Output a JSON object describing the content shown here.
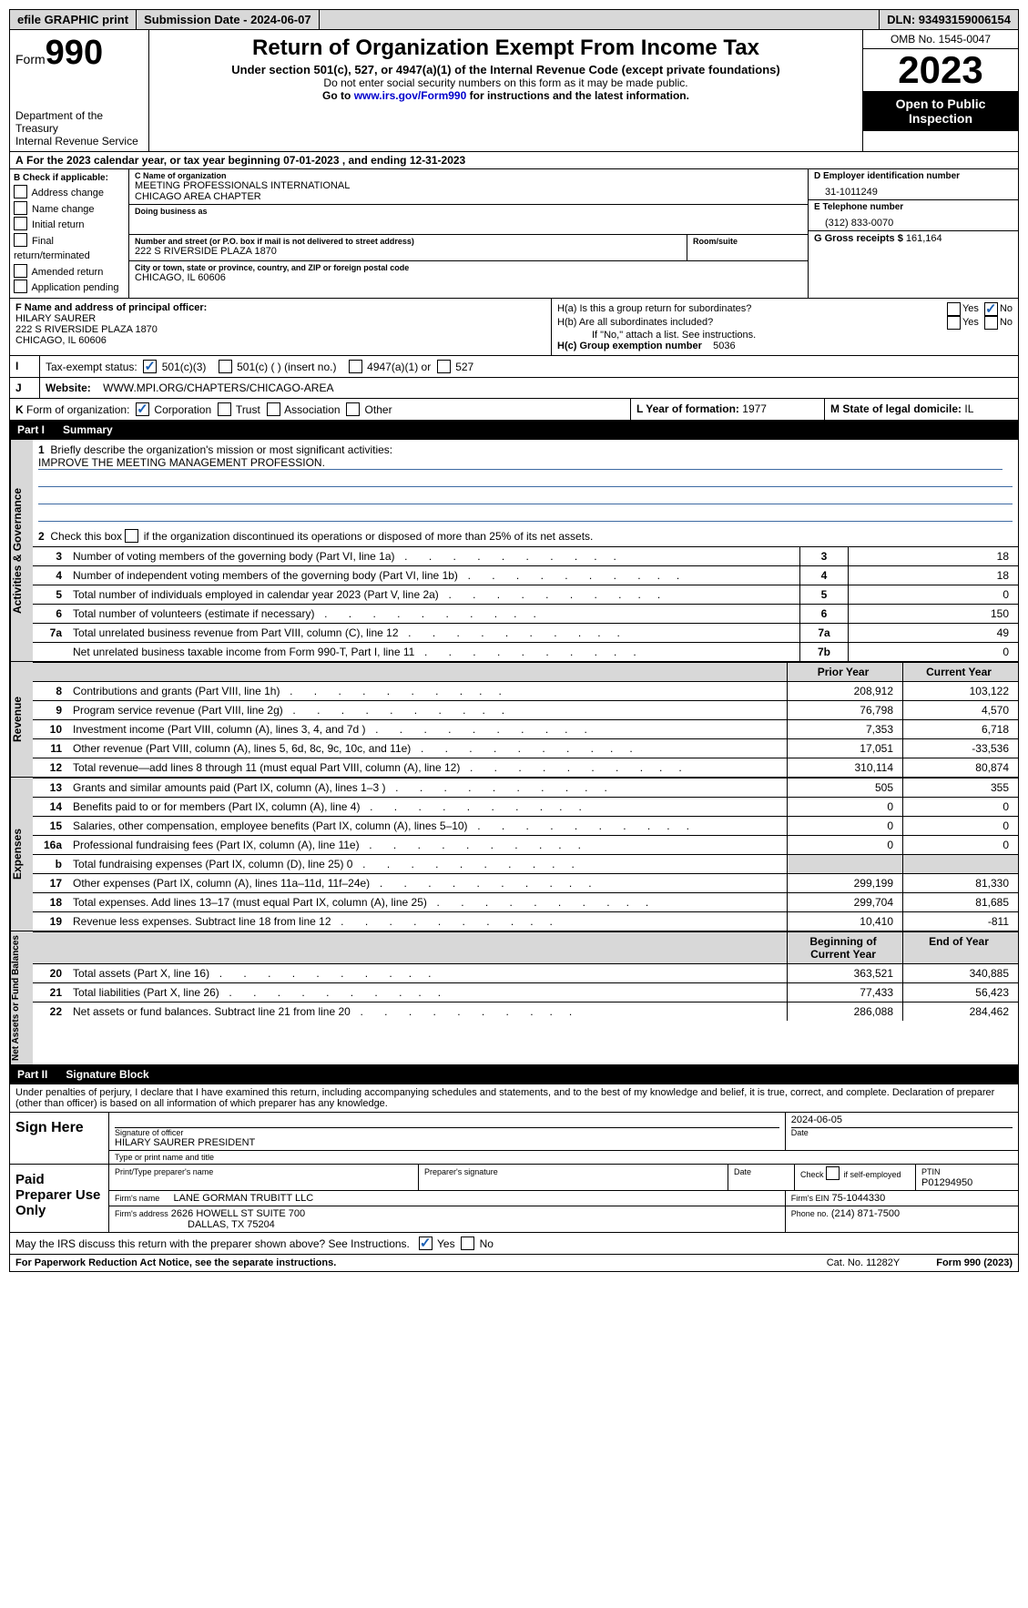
{
  "colors": {
    "bg": "#ffffff",
    "text": "#000000",
    "topbar_bg": "#d8d8d8",
    "grey_bg": "#d8d8d8",
    "black_bg": "#000000",
    "link": "#0000cc",
    "check_color": "#1a5fb4",
    "underline": "#3d6aa3"
  },
  "topbar": {
    "efile": "efile GRAPHIC print",
    "submission": "Submission Date - 2024-06-07",
    "dln": "DLN: 93493159006154"
  },
  "header": {
    "form_word": "Form",
    "form_num": "990",
    "dept1": "Department of the Treasury",
    "dept2": "Internal Revenue Service",
    "title": "Return of Organization Exempt From Income Tax",
    "sub": "Under section 501(c), 527, or 4947(a)(1) of the Internal Revenue Code (except private foundations)",
    "note1": "Do not enter social security numbers on this form as it may be made public.",
    "note2_pre": "Go to ",
    "note2_link": "www.irs.gov/Form990",
    "note2_post": " for instructions and the latest information.",
    "omb": "OMB No. 1545-0047",
    "year": "2023",
    "openpub": "Open to Public Inspection"
  },
  "A": {
    "text": "For the 2023 calendar year, or tax year beginning 07-01-2023   , and ending 12-31-2023"
  },
  "B": {
    "title": "B Check if applicable:",
    "opts": [
      {
        "label": "Address change",
        "checked": false
      },
      {
        "label": "Name change",
        "checked": false
      },
      {
        "label": "Initial return",
        "checked": false
      },
      {
        "label": "Final return/terminated",
        "checked": false
      },
      {
        "label": "Amended return",
        "checked": false
      },
      {
        "label": "Application pending",
        "checked": false
      }
    ]
  },
  "C": {
    "name_lbl": "C Name of organization",
    "name1": "MEETING PROFESSIONALS INTERNATIONAL",
    "name2": "CHICAGO AREA CHAPTER",
    "dba_lbl": "Doing business as",
    "dba": "",
    "addr_lbl": "Number and street (or P.O. box if mail is not delivered to street address)",
    "addr": "222 S RIVERSIDE PLAZA 1870",
    "room_lbl": "Room/suite",
    "city_lbl": "City or town, state or province, country, and ZIP or foreign postal code",
    "city": "CHICAGO, IL  60606"
  },
  "D": {
    "lbl": "D Employer identification number",
    "val": "31-1011249"
  },
  "E": {
    "lbl": "E Telephone number",
    "val": "(312) 833-0070"
  },
  "G": {
    "lbl": "G Gross receipts $",
    "val": "161,164"
  },
  "F": {
    "lbl": "F  Name and address of principal officer:",
    "name": "HILARY SAURER",
    "addr": "222 S RIVERSIDE PLAZA 1870",
    "city": "CHICAGO, IL  60606"
  },
  "H": {
    "a": "H(a)  Is this a group return for subordinates?",
    "a_yes": false,
    "a_no": true,
    "b": "H(b)  Are all subordinates included?",
    "b_yes": false,
    "b_no": false,
    "b_note": "If \"No,\" attach a list. See instructions.",
    "c_lbl": "H(c)  Group exemption number",
    "c_val": "5036"
  },
  "I": {
    "lbl": "Tax-exempt status:",
    "opt1": "501(c)(3)",
    "opt1_checked": true,
    "opt2": "501(c) (  ) (insert no.)",
    "opt3": "4947(a)(1) or",
    "opt4": "527"
  },
  "J": {
    "lbl": "Website:",
    "val": "WWW.MPI.ORG/CHAPTERS/CHICAGO-AREA"
  },
  "K": {
    "lbl": "Form of organization:",
    "opts": [
      {
        "label": "Corporation",
        "checked": true
      },
      {
        "label": "Trust",
        "checked": false
      },
      {
        "label": "Association",
        "checked": false
      },
      {
        "label": "Other",
        "checked": false
      }
    ]
  },
  "L": {
    "lbl": "L Year of formation:",
    "val": "1977"
  },
  "M": {
    "lbl": "M State of legal domicile:",
    "val": "IL"
  },
  "part1": {
    "hdr": "Part I",
    "title": "Summary",
    "line1_lbl": "Briefly describe the organization's mission or most significant activities:",
    "line1_val": "IMPROVE THE MEETING MANAGEMENT PROFESSION.",
    "line2": "Check this box       if the organization discontinued its operations or disposed of more than 25% of its net assets.",
    "side1": "Activities & Governance",
    "side2": "Revenue",
    "side3": "Expenses",
    "side4": "Net Assets or Fund Balances",
    "col_prior": "Prior Year",
    "col_current": "Current Year",
    "col_beg": "Beginning of Current Year",
    "col_end": "End of Year",
    "gov_rows": [
      {
        "n": "3",
        "desc": "Number of voting members of the governing body (Part VI, line 1a)",
        "box": "3",
        "val": "18"
      },
      {
        "n": "4",
        "desc": "Number of independent voting members of the governing body (Part VI, line 1b)",
        "box": "4",
        "val": "18"
      },
      {
        "n": "5",
        "desc": "Total number of individuals employed in calendar year 2023 (Part V, line 2a)",
        "box": "5",
        "val": "0"
      },
      {
        "n": "6",
        "desc": "Total number of volunteers (estimate if necessary)",
        "box": "6",
        "val": "150"
      },
      {
        "n": "7a",
        "desc": "Total unrelated business revenue from Part VIII, column (C), line 12",
        "box": "7a",
        "val": "49"
      },
      {
        "n": "",
        "desc": "Net unrelated business taxable income from Form 990-T, Part I, line 11",
        "box": "7b",
        "val": "0"
      }
    ],
    "rev_rows": [
      {
        "n": "8",
        "desc": "Contributions and grants (Part VIII, line 1h)",
        "py": "208,912",
        "cy": "103,122"
      },
      {
        "n": "9",
        "desc": "Program service revenue (Part VIII, line 2g)",
        "py": "76,798",
        "cy": "4,570"
      },
      {
        "n": "10",
        "desc": "Investment income (Part VIII, column (A), lines 3, 4, and 7d )",
        "py": "7,353",
        "cy": "6,718"
      },
      {
        "n": "11",
        "desc": "Other revenue (Part VIII, column (A), lines 5, 6d, 8c, 9c, 10c, and 11e)",
        "py": "17,051",
        "cy": "-33,536"
      },
      {
        "n": "12",
        "desc": "Total revenue—add lines 8 through 11 (must equal Part VIII, column (A), line 12)",
        "py": "310,114",
        "cy": "80,874"
      }
    ],
    "exp_rows": [
      {
        "n": "13",
        "desc": "Grants and similar amounts paid (Part IX, column (A), lines 1–3 )",
        "py": "505",
        "cy": "355"
      },
      {
        "n": "14",
        "desc": "Benefits paid to or for members (Part IX, column (A), line 4)",
        "py": "0",
        "cy": "0"
      },
      {
        "n": "15",
        "desc": "Salaries, other compensation, employee benefits (Part IX, column (A), lines 5–10)",
        "py": "0",
        "cy": "0"
      },
      {
        "n": "16a",
        "desc": "Professional fundraising fees (Part IX, column (A), line 11e)",
        "py": "0",
        "cy": "0"
      },
      {
        "n": "b",
        "desc": "Total fundraising expenses (Part IX, column (D), line 25) 0",
        "py": "GREY",
        "cy": "GREY"
      },
      {
        "n": "17",
        "desc": "Other expenses (Part IX, column (A), lines 11a–11d, 11f–24e)",
        "py": "299,199",
        "cy": "81,330"
      },
      {
        "n": "18",
        "desc": "Total expenses. Add lines 13–17 (must equal Part IX, column (A), line 25)",
        "py": "299,704",
        "cy": "81,685"
      },
      {
        "n": "19",
        "desc": "Revenue less expenses. Subtract line 18 from line 12",
        "py": "10,410",
        "cy": "-811"
      }
    ],
    "na_rows": [
      {
        "n": "20",
        "desc": "Total assets (Part X, line 16)",
        "py": "363,521",
        "cy": "340,885"
      },
      {
        "n": "21",
        "desc": "Total liabilities (Part X, line 26)",
        "py": "77,433",
        "cy": "56,423"
      },
      {
        "n": "22",
        "desc": "Net assets or fund balances. Subtract line 21 from line 20",
        "py": "286,088",
        "cy": "284,462"
      }
    ]
  },
  "part2": {
    "hdr": "Part II",
    "title": "Signature Block",
    "declare": "Under penalties of perjury, I declare that I have examined this return, including accompanying schedules and statements, and to the best of my knowledge and belief, it is true, correct, and complete. Declaration of preparer (other than officer) is based on all information of which preparer has any knowledge.",
    "sign_here": "Sign Here",
    "sig_date": "2024-06-05",
    "sig_lbl": "Signature of officer",
    "sig_name": "HILARY SAURER  PRESIDENT",
    "sig_type_lbl": "Type or print name and title",
    "date_lbl": "Date",
    "paid": "Paid Preparer Use Only",
    "prep_name_lbl": "Print/Type preparer's name",
    "prep_sig_lbl": "Preparer's signature",
    "prep_date_lbl": "Date",
    "self_emp": "Check       if self-employed",
    "ptin_lbl": "PTIN",
    "ptin": "P01294950",
    "firm_name_lbl": "Firm's name",
    "firm_name": "LANE GORMAN TRUBITT LLC",
    "firm_ein_lbl": "Firm's EIN",
    "firm_ein": "75-1044330",
    "firm_addr_lbl": "Firm's address",
    "firm_addr1": "2626 HOWELL ST SUITE 700",
    "firm_addr2": "DALLAS, TX  75204",
    "phone_lbl": "Phone no.",
    "phone": "(214) 871-7500",
    "discuss": "May the IRS discuss this return with the preparer shown above? See Instructions.",
    "discuss_yes": true,
    "discuss_no": false
  },
  "footer": {
    "pra": "For Paperwork Reduction Act Notice, see the separate instructions.",
    "catno": "Cat. No. 11282Y",
    "formno": "Form 990 (2023)"
  }
}
